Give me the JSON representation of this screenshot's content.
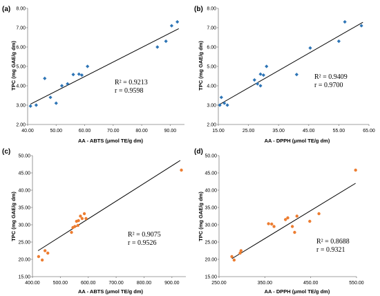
{
  "chart_data": [
    {
      "panel": "(a)",
      "type": "scatter",
      "xlabel": "AA - ABTS (μmol TE/g dm)",
      "ylabel": "TPC (mg GAE/g dm)",
      "xlim": [
        40,
        95
      ],
      "ylim": [
        2,
        8
      ],
      "xticks": [
        40,
        50,
        60,
        70,
        80,
        90
      ],
      "xtick_labels": [
        "40.00",
        "50.00",
        "60.00",
        "70.00",
        "80.00",
        "90.00"
      ],
      "yticks": [
        2,
        3,
        4,
        5,
        6,
        7,
        8
      ],
      "ytick_labels": [
        "2.00",
        "3.00",
        "4.00",
        "5.00",
        "6.00",
        "7.00",
        "8.00"
      ],
      "marker": "diamond",
      "color": "#2e75b6",
      "points": [
        [
          41,
          2.95
        ],
        [
          43,
          3.0
        ],
        [
          46,
          4.38
        ],
        [
          48,
          3.4
        ],
        [
          50,
          3.1
        ],
        [
          52,
          4.0
        ],
        [
          54,
          4.1
        ],
        [
          56,
          4.58
        ],
        [
          58,
          4.6
        ],
        [
          59,
          4.55
        ],
        [
          61,
          5.0
        ],
        [
          85.5,
          6.0
        ],
        [
          88.5,
          6.3
        ],
        [
          90.5,
          7.1
        ],
        [
          92.5,
          7.3
        ]
      ],
      "fit_line": [
        [
          41,
          3.05
        ],
        [
          93,
          6.95
        ]
      ],
      "r2": "R² = 0.9213",
      "r": "r = 0.9598"
    },
    {
      "panel": "(b)",
      "type": "scatter",
      "xlabel": "AA - DPPH (μmol TE/g dm)",
      "ylabel": "TPC (mg GAE/g dm)",
      "xlim": [
        15,
        65
      ],
      "ylim": [
        2,
        8
      ],
      "xticks": [
        15,
        25,
        35,
        45,
        55,
        65
      ],
      "xtick_labels": [
        "15.00",
        "25.00",
        "35.00",
        "45.00",
        "55.00",
        "65.00"
      ],
      "yticks": [
        2,
        3,
        4,
        5,
        6,
        7,
        8
      ],
      "ytick_labels": [
        "2.00",
        "3.00",
        "4.00",
        "5.00",
        "6.00",
        "7.00",
        "8.00"
      ],
      "marker": "diamond",
      "color": "#2e75b6",
      "points": [
        [
          15.5,
          3.0
        ],
        [
          16,
          3.4
        ],
        [
          17,
          3.1
        ],
        [
          18,
          3.0
        ],
        [
          27,
          4.3
        ],
        [
          28,
          4.1
        ],
        [
          29,
          4.0
        ],
        [
          29,
          4.6
        ],
        [
          30,
          4.55
        ],
        [
          31,
          5.0
        ],
        [
          41,
          4.58
        ],
        [
          45.5,
          5.95
        ],
        [
          55,
          6.3
        ],
        [
          57,
          7.3
        ],
        [
          62.5,
          7.1
        ]
      ],
      "fit_line": [
        [
          15,
          3.0
        ],
        [
          63,
          7.28
        ]
      ],
      "r2": "R² = 0.9409",
      "r": "r = 0.9700"
    },
    {
      "panel": "(c)",
      "type": "scatter",
      "xlabel": "AA - ABTS (μmol TE/g dm)",
      "ylabel": "TPC (mg GAE/g dm)",
      "xlim": [
        400,
        950
      ],
      "ylim": [
        15,
        50
      ],
      "xticks": [
        400,
        500,
        600,
        700,
        800,
        900
      ],
      "xtick_labels": [
        "400.00",
        "500.00",
        "600.00",
        "700.00",
        "800.00",
        "900.00"
      ],
      "yticks": [
        15,
        20,
        25,
        30,
        35,
        40,
        45,
        50
      ],
      "ytick_labels": [
        "15.00",
        "20.00",
        "25.00",
        "30.00",
        "35.00",
        "40.00",
        "45.00",
        "50.00"
      ],
      "marker": "circle",
      "color": "#ed7d31",
      "points": [
        [
          422,
          20.8
        ],
        [
          435,
          19.8
        ],
        [
          445,
          22.5
        ],
        [
          455,
          21.8
        ],
        [
          540,
          27.8
        ],
        [
          545,
          29.2
        ],
        [
          552,
          29.5
        ],
        [
          558,
          31.0
        ],
        [
          563,
          29.8
        ],
        [
          565,
          31.2
        ],
        [
          572,
          32.5
        ],
        [
          578,
          31.8
        ],
        [
          586,
          33.2
        ],
        [
          592,
          31.8
        ],
        [
          934,
          45.8
        ]
      ],
      "fit_line": [
        [
          420,
          22.5
        ],
        [
          930,
          48.6
        ]
      ],
      "r2": "R² = 0.9075",
      "r": "r = 0.9526"
    },
    {
      "panel": "(d)",
      "type": "scatter",
      "xlabel": "AA - DPPH (μmol TE/g dm)",
      "ylabel": "TPC (mg GAE/g dm)",
      "xlim": [
        250,
        550
      ],
      "ylim": [
        15,
        50
      ],
      "xticks": [
        250,
        350,
        450,
        550
      ],
      "xtick_labels": [
        "250.00",
        "350.00",
        "450.00",
        "550.00"
      ],
      "yticks": [
        15,
        20,
        25,
        30,
        35,
        40,
        45,
        50
      ],
      "ytick_labels": [
        "15.00",
        "20.00",
        "25.00",
        "30.00",
        "35.00",
        "40.00",
        "45.00",
        "50.00"
      ],
      "marker": "circle",
      "color": "#ed7d31",
      "points": [
        [
          278,
          20.8
        ],
        [
          283,
          19.8
        ],
        [
          296,
          21.8
        ],
        [
          298,
          22.5
        ],
        [
          358,
          30.3
        ],
        [
          365,
          30.2
        ],
        [
          370,
          29.5
        ],
        [
          395,
          31.5
        ],
        [
          400,
          32.0
        ],
        [
          410,
          29.5
        ],
        [
          415,
          27.8
        ],
        [
          420,
          32.5
        ],
        [
          448,
          31.0
        ],
        [
          468,
          33.2
        ],
        [
          548,
          45.8
        ]
      ],
      "fit_line": [
        [
          278,
          20.2
        ],
        [
          548,
          42.0
        ]
      ],
      "r2": "R² = 0.8688",
      "r": "r = 0.9321"
    }
  ]
}
